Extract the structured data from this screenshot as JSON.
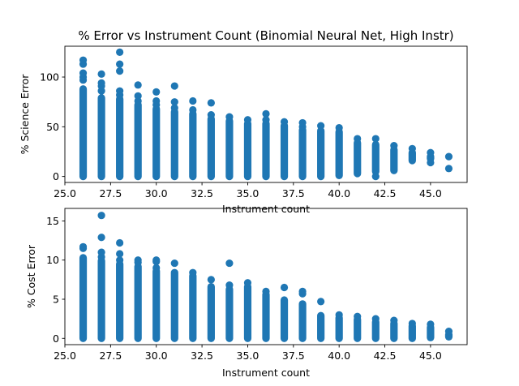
{
  "figure": {
    "background": "#ffffff",
    "marker_color": "#1f77b4"
  },
  "chart_data": [
    {
      "type": "scatter",
      "title": "% Error vs Instrument Count (Binomial Neural Net, High Instr)",
      "xlabel": "Instrument count",
      "ylabel": "% Science Error",
      "xlim": [
        25.0,
        47.0
      ],
      "ylim": [
        -6,
        131
      ],
      "xticks": [
        25.0,
        27.5,
        30.0,
        32.5,
        35.0,
        37.5,
        40.0,
        42.5,
        45.0
      ],
      "xtick_labels": [
        "25.0",
        "27.5",
        "30.0",
        "32.5",
        "35.0",
        "37.5",
        "40.0",
        "42.5",
        "45.0"
      ],
      "yticks": [
        0,
        50,
        100
      ],
      "ytick_labels": [
        "0",
        "50",
        "100"
      ],
      "grid": false,
      "series": [
        {
          "color": "#1f77b4",
          "columns": [
            {
              "x": 26,
              "range": [
                0,
                88
              ],
              "outliers": [
                97,
                100,
                104,
                113,
                117
              ]
            },
            {
              "x": 27,
              "range": [
                0,
                79
              ],
              "outliers": [
                86,
                91,
                94,
                103
              ]
            },
            {
              "x": 28,
              "range": [
                0,
                78
              ],
              "outliers": [
                82,
                86,
                106,
                113,
                125
              ]
            },
            {
              "x": 29,
              "range": [
                0,
                72
              ],
              "outliers": [
                76,
                81,
                92
              ]
            },
            {
              "x": 30,
              "range": [
                0,
                68
              ],
              "outliers": [
                72,
                76,
                85
              ]
            },
            {
              "x": 31,
              "range": [
                0,
                65
              ],
              "outliers": [
                69,
                75,
                91
              ]
            },
            {
              "x": 32,
              "range": [
                0,
                63
              ],
              "outliers": [
                67,
                76
              ]
            },
            {
              "x": 33,
              "range": [
                0,
                58
              ],
              "outliers": [
                62,
                74
              ]
            },
            {
              "x": 34,
              "range": [
                0,
                56
              ],
              "outliers": [
                60
              ]
            },
            {
              "x": 35,
              "range": [
                0,
                53
              ],
              "outliers": [
                57
              ]
            },
            {
              "x": 36,
              "range": [
                0,
                53
              ],
              "outliers": [
                57,
                63
              ]
            },
            {
              "x": 37,
              "range": [
                0,
                51
              ],
              "outliers": [
                55
              ]
            },
            {
              "x": 38,
              "range": [
                0,
                47
              ],
              "outliers": [
                50,
                54
              ]
            },
            {
              "x": 39,
              "range": [
                0,
                46
              ],
              "outliers": [
                51
              ]
            },
            {
              "x": 40,
              "range": [
                1,
                45
              ],
              "outliers": [
                49
              ]
            },
            {
              "x": 41,
              "range": [
                3,
                34
              ],
              "outliers": [
                38
              ]
            },
            {
              "x": 42,
              "range": [
                5,
                32
              ],
              "outliers": [
                0,
                38
              ]
            },
            {
              "x": 43,
              "range": [
                6,
                27
              ],
              "outliers": [
                31
              ]
            },
            {
              "x": 44,
              "range": [
                16,
                24
              ],
              "outliers": [
                28
              ]
            },
            {
              "x": 45,
              "range": [
                18,
                20
              ],
              "outliers": [
                14,
                24
              ]
            },
            {
              "x": 46,
              "range": [
                20,
                20
              ],
              "outliers": [
                8
              ]
            }
          ]
        }
      ]
    },
    {
      "type": "scatter",
      "title": "",
      "xlabel": "Instrument count",
      "ylabel": "% Cost Error",
      "xlim": [
        25.0,
        47.0
      ],
      "ylim": [
        -0.8,
        16.6
      ],
      "xticks": [
        25.0,
        27.5,
        30.0,
        32.5,
        35.0,
        37.5,
        40.0,
        42.5,
        45.0
      ],
      "xtick_labels": [
        "25.0",
        "27.5",
        "30.0",
        "32.5",
        "35.0",
        "37.5",
        "40.0",
        "42.5",
        "45.0"
      ],
      "yticks": [
        0,
        5,
        10,
        15
      ],
      "ytick_labels": [
        "0",
        "5",
        "10",
        "15"
      ],
      "grid": false,
      "series": [
        {
          "color": "#1f77b4",
          "columns": [
            {
              "x": 26,
              "range": [
                0,
                10.3
              ],
              "outliers": [
                11.5,
                11.7
              ]
            },
            {
              "x": 27,
              "range": [
                0,
                9.9
              ],
              "outliers": [
                10.4,
                11.0,
                12.9,
                15.7
              ]
            },
            {
              "x": 28,
              "range": [
                0,
                9.5
              ],
              "outliers": [
                10.0,
                10.8,
                12.2
              ]
            },
            {
              "x": 29,
              "range": [
                0,
                9.2
              ],
              "outliers": [
                9.7,
                10.0
              ]
            },
            {
              "x": 30,
              "range": [
                0,
                8.6
              ],
              "outliers": [
                9.0,
                9.8,
                10.0
              ]
            },
            {
              "x": 31,
              "range": [
                0,
                8.4
              ],
              "outliers": [
                9.6
              ]
            },
            {
              "x": 32,
              "range": [
                0,
                8.0
              ],
              "outliers": [
                8.4
              ]
            },
            {
              "x": 33,
              "range": [
                0,
                6.6
              ],
              "outliers": [
                7.5
              ]
            },
            {
              "x": 34,
              "range": [
                0,
                6.3
              ],
              "outliers": [
                6.8,
                9.6
              ]
            },
            {
              "x": 35,
              "range": [
                0,
                6.6
              ],
              "outliers": [
                7.1
              ]
            },
            {
              "x": 36,
              "range": [
                0,
                5.6
              ],
              "outliers": [
                6.0
              ]
            },
            {
              "x": 37,
              "range": [
                0,
                4.9
              ],
              "outliers": [
                6.5
              ]
            },
            {
              "x": 38,
              "range": [
                0,
                4.4
              ],
              "outliers": [
                5.7,
                6.0
              ]
            },
            {
              "x": 39,
              "range": [
                0,
                2.9
              ],
              "outliers": [
                4.7
              ]
            },
            {
              "x": 40,
              "range": [
                0,
                2.6
              ],
              "outliers": [
                3.0
              ]
            },
            {
              "x": 41,
              "range": [
                0,
                2.4
              ],
              "outliers": [
                2.8
              ]
            },
            {
              "x": 42,
              "range": [
                0,
                2.1
              ],
              "outliers": [
                2.5
              ]
            },
            {
              "x": 43,
              "range": [
                0,
                1.9
              ],
              "outliers": [
                2.3
              ]
            },
            {
              "x": 44,
              "range": [
                0,
                1.6
              ],
              "outliers": [
                1.9
              ]
            },
            {
              "x": 45,
              "range": [
                0.1,
                1.4
              ],
              "outliers": [
                1.8
              ]
            },
            {
              "x": 46,
              "range": [
                0.2,
                0.5
              ],
              "outliers": [
                0.9
              ]
            }
          ]
        }
      ]
    }
  ]
}
